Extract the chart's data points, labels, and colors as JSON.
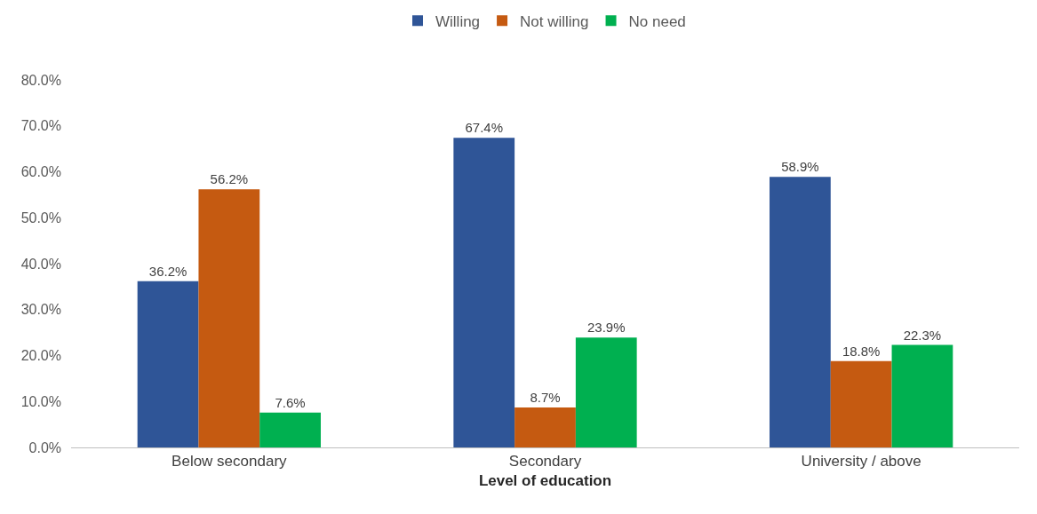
{
  "chart_data": {
    "type": "bar",
    "xlabel": "Level of education",
    "categories": [
      "Below secondary",
      "Secondary",
      "University / above"
    ],
    "series": [
      {
        "name": "Willing",
        "color": "#2f5597",
        "values": [
          36.2,
          67.4,
          58.9
        ],
        "value_labels": [
          "36.2%",
          "67.4%",
          "58.9%"
        ]
      },
      {
        "name": "Not willing",
        "color": "#c55a11",
        "values": [
          56.2,
          8.7,
          18.8
        ],
        "value_labels": [
          "56.2%",
          "8.7%",
          "18.8%"
        ]
      },
      {
        "name": "No need",
        "color": "#00b050",
        "values": [
          7.6,
          23.9,
          22.3
        ],
        "value_labels": [
          "7.6%",
          "23.9%",
          "22.3%"
        ]
      }
    ],
    "ylim": [
      0,
      80
    ],
    "yticks": [
      {
        "value": 0,
        "label": "0.0%"
      },
      {
        "value": 10,
        "label": "10.0%"
      },
      {
        "value": 20,
        "label": "20.0%"
      },
      {
        "value": 30,
        "label": "30.0%"
      },
      {
        "value": 40,
        "label": "40.0%"
      },
      {
        "value": 50,
        "label": "50.0%"
      },
      {
        "value": 60,
        "label": "60.0%"
      },
      {
        "value": 70,
        "label": "70.0%"
      },
      {
        "value": 80,
        "label": "80.0%"
      }
    ],
    "grid": false,
    "legend": "top"
  }
}
